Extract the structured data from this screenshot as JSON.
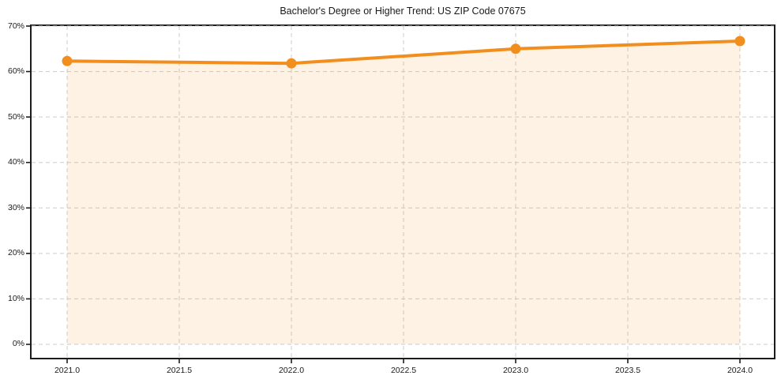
{
  "chart_data": {
    "type": "line",
    "title": "Bachelor's Degree or Higher Trend: US ZIP Code 07675",
    "x": [
      2021,
      2022,
      2023,
      2024
    ],
    "values": [
      62.3,
      61.8,
      65.0,
      66.7
    ],
    "x_ticks": [
      2021.0,
      2021.5,
      2022.0,
      2022.5,
      2023.0,
      2023.5,
      2024.0
    ],
    "x_tick_labels": [
      "2021.0",
      "2021.5",
      "2022.0",
      "2022.5",
      "2023.0",
      "2023.5",
      "2024.0"
    ],
    "y_ticks": [
      0,
      10,
      20,
      30,
      40,
      50,
      60,
      70
    ],
    "y_tick_labels": [
      "0%",
      "10%",
      "20%",
      "30%",
      "40%",
      "50%",
      "60%",
      "70%"
    ],
    "xlim": [
      2020.8415,
      2024.1514
    ],
    "ylim": [
      -2.953,
      70.0
    ],
    "grid": true,
    "grid_style": "dashed",
    "legend": "none",
    "xlabel": "",
    "ylabel": "",
    "line_color": "#F28E1D",
    "marker_color": "#F28E1D",
    "fill_color": "rgba(243,146,33,0.12)",
    "marker": "circle",
    "area_fill": "to_zero"
  }
}
